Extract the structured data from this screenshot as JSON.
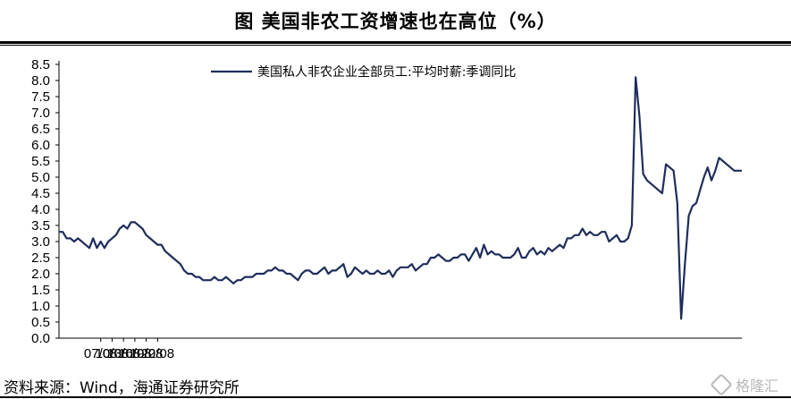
{
  "title": "图  美国非农工资增速也在高位（%）",
  "source": "资料来源：Wind，海通证券研究所",
  "watermark": "格隆汇",
  "colors": {
    "line": "#1f2d5c",
    "axis": "#000000"
  },
  "chart_data": {
    "type": "line",
    "title": "图  美国非农工资增速也在高位（%）",
    "xlabel": "",
    "ylabel": "",
    "ylim": [
      0.0,
      8.5
    ],
    "yticks": [
      "0.0",
      "0.5",
      "1.0",
      "1.5",
      "2.0",
      "2.5",
      "3.0",
      "3.5",
      "4.0",
      "4.5",
      "5.0",
      "5.5",
      "6.0",
      "6.5",
      "7.0",
      "7.5",
      "8.0",
      "8.5"
    ],
    "xticks": [
      "07/08",
      "10/08",
      "13/08",
      "16/08",
      "19/08",
      "22/08"
    ],
    "xrange": [
      "2007-08",
      "2022-08"
    ],
    "legend_position": "top",
    "grid": false,
    "series": [
      {
        "name": "美国私人非农企业全部员工:平均时薪:季调同比",
        "color": "#1f2d5c",
        "points": [
          [
            "2007-08",
            3.3
          ],
          [
            "2007-09",
            3.3
          ],
          [
            "2007-10",
            3.1
          ],
          [
            "2007-11",
            3.1
          ],
          [
            "2007-12",
            3.0
          ],
          [
            "2008-01",
            3.1
          ],
          [
            "2008-02",
            3.0
          ],
          [
            "2008-03",
            2.9
          ],
          [
            "2008-04",
            2.8
          ],
          [
            "2008-05",
            3.1
          ],
          [
            "2008-06",
            2.8
          ],
          [
            "2008-07",
            3.0
          ],
          [
            "2008-08",
            2.8
          ],
          [
            "2008-09",
            3.0
          ],
          [
            "2008-10",
            3.1
          ],
          [
            "2008-11",
            3.2
          ],
          [
            "2008-12",
            3.4
          ],
          [
            "2009-01",
            3.5
          ],
          [
            "2009-02",
            3.4
          ],
          [
            "2009-03",
            3.6
          ],
          [
            "2009-04",
            3.6
          ],
          [
            "2009-05",
            3.5
          ],
          [
            "2009-06",
            3.4
          ],
          [
            "2009-07",
            3.2
          ],
          [
            "2009-08",
            3.1
          ],
          [
            "2009-09",
            3.0
          ],
          [
            "2009-10",
            2.9
          ],
          [
            "2009-11",
            2.9
          ],
          [
            "2009-12",
            2.7
          ],
          [
            "2010-01",
            2.6
          ],
          [
            "2010-02",
            2.5
          ],
          [
            "2010-03",
            2.4
          ],
          [
            "2010-04",
            2.3
          ],
          [
            "2010-05",
            2.1
          ],
          [
            "2010-06",
            2.0
          ],
          [
            "2010-07",
            2.0
          ],
          [
            "2010-08",
            1.9
          ],
          [
            "2010-09",
            1.9
          ],
          [
            "2010-10",
            1.8
          ],
          [
            "2010-11",
            1.8
          ],
          [
            "2010-12",
            1.8
          ],
          [
            "2011-01",
            1.9
          ],
          [
            "2011-02",
            1.8
          ],
          [
            "2011-03",
            1.8
          ],
          [
            "2011-04",
            1.9
          ],
          [
            "2011-05",
            1.8
          ],
          [
            "2011-06",
            1.7
          ],
          [
            "2011-07",
            1.8
          ],
          [
            "2011-08",
            1.8
          ],
          [
            "2011-09",
            1.9
          ],
          [
            "2011-10",
            1.9
          ],
          [
            "2011-11",
            1.9
          ],
          [
            "2011-12",
            2.0
          ],
          [
            "2012-01",
            2.0
          ],
          [
            "2012-02",
            2.0
          ],
          [
            "2012-03",
            2.1
          ],
          [
            "2012-04",
            2.1
          ],
          [
            "2012-05",
            2.2
          ],
          [
            "2012-06",
            2.1
          ],
          [
            "2012-07",
            2.1
          ],
          [
            "2012-08",
            2.0
          ],
          [
            "2012-09",
            2.0
          ],
          [
            "2012-10",
            1.9
          ],
          [
            "2012-11",
            1.8
          ],
          [
            "2012-12",
            2.0
          ],
          [
            "2013-01",
            2.1
          ],
          [
            "2013-02",
            2.1
          ],
          [
            "2013-03",
            2.0
          ],
          [
            "2013-04",
            2.0
          ],
          [
            "2013-05",
            2.1
          ],
          [
            "2013-06",
            2.2
          ],
          [
            "2013-07",
            2.0
          ],
          [
            "2013-08",
            2.1
          ],
          [
            "2013-09",
            2.1
          ],
          [
            "2013-10",
            2.2
          ],
          [
            "2013-11",
            2.3
          ],
          [
            "2013-12",
            1.9
          ],
          [
            "2014-01",
            2.0
          ],
          [
            "2014-02",
            2.2
          ],
          [
            "2014-03",
            2.1
          ],
          [
            "2014-04",
            2.0
          ],
          [
            "2014-05",
            2.1
          ],
          [
            "2014-06",
            2.0
          ],
          [
            "2014-07",
            2.0
          ],
          [
            "2014-08",
            2.1
          ],
          [
            "2014-09",
            2.0
          ],
          [
            "2014-10",
            2.0
          ],
          [
            "2014-11",
            2.1
          ],
          [
            "2014-12",
            1.9
          ],
          [
            "2015-01",
            2.1
          ],
          [
            "2015-02",
            2.2
          ],
          [
            "2015-03",
            2.2
          ],
          [
            "2015-04",
            2.2
          ],
          [
            "2015-05",
            2.3
          ],
          [
            "2015-06",
            2.1
          ],
          [
            "2015-07",
            2.2
          ],
          [
            "2015-08",
            2.3
          ],
          [
            "2015-09",
            2.3
          ],
          [
            "2015-10",
            2.5
          ],
          [
            "2015-11",
            2.5
          ],
          [
            "2015-12",
            2.6
          ],
          [
            "2016-01",
            2.5
          ],
          [
            "2016-02",
            2.4
          ],
          [
            "2016-03",
            2.4
          ],
          [
            "2016-04",
            2.5
          ],
          [
            "2016-05",
            2.5
          ],
          [
            "2016-06",
            2.6
          ],
          [
            "2016-07",
            2.6
          ],
          [
            "2016-08",
            2.4
          ],
          [
            "2016-09",
            2.6
          ],
          [
            "2016-10",
            2.8
          ],
          [
            "2016-11",
            2.5
          ],
          [
            "2016-12",
            2.9
          ],
          [
            "2017-01",
            2.6
          ],
          [
            "2017-02",
            2.7
          ],
          [
            "2017-03",
            2.6
          ],
          [
            "2017-04",
            2.6
          ],
          [
            "2017-05",
            2.5
          ],
          [
            "2017-06",
            2.5
          ],
          [
            "2017-07",
            2.5
          ],
          [
            "2017-08",
            2.6
          ],
          [
            "2017-09",
            2.8
          ],
          [
            "2017-10",
            2.5
          ],
          [
            "2017-11",
            2.5
          ],
          [
            "2017-12",
            2.7
          ],
          [
            "2018-01",
            2.8
          ],
          [
            "2018-02",
            2.6
          ],
          [
            "2018-03",
            2.7
          ],
          [
            "2018-04",
            2.6
          ],
          [
            "2018-05",
            2.8
          ],
          [
            "2018-06",
            2.7
          ],
          [
            "2018-07",
            2.8
          ],
          [
            "2018-08",
            2.9
          ],
          [
            "2018-09",
            2.8
          ],
          [
            "2018-10",
            3.1
          ],
          [
            "2018-11",
            3.1
          ],
          [
            "2018-12",
            3.2
          ],
          [
            "2019-01",
            3.2
          ],
          [
            "2019-02",
            3.4
          ],
          [
            "2019-03",
            3.2
          ],
          [
            "2019-04",
            3.3
          ],
          [
            "2019-05",
            3.2
          ],
          [
            "2019-06",
            3.2
          ],
          [
            "2019-07",
            3.3
          ],
          [
            "2019-08",
            3.3
          ],
          [
            "2019-09",
            3.0
          ],
          [
            "2019-10",
            3.1
          ],
          [
            "2019-11",
            3.2
          ],
          [
            "2019-12",
            3.0
          ],
          [
            "2020-01",
            3.0
          ],
          [
            "2020-02",
            3.1
          ],
          [
            "2020-03",
            3.5
          ],
          [
            "2020-04",
            8.1
          ],
          [
            "2020-05",
            6.9
          ],
          [
            "2020-06",
            5.1
          ],
          [
            "2020-07",
            4.9
          ],
          [
            "2020-08",
            4.8
          ],
          [
            "2020-09",
            4.7
          ],
          [
            "2020-10",
            4.6
          ],
          [
            "2020-11",
            4.5
          ],
          [
            "2020-12",
            5.4
          ],
          [
            "2021-01",
            5.3
          ],
          [
            "2021-02",
            5.2
          ],
          [
            "2021-03",
            4.2
          ],
          [
            "2021-04",
            0.6
          ],
          [
            "2021-05",
            2.3
          ],
          [
            "2021-06",
            3.8
          ],
          [
            "2021-07",
            4.1
          ],
          [
            "2021-08",
            4.2
          ],
          [
            "2021-09",
            4.6
          ],
          [
            "2021-10",
            5.0
          ],
          [
            "2021-11",
            5.3
          ],
          [
            "2021-12",
            4.9
          ],
          [
            "2022-01",
            5.2
          ],
          [
            "2022-02",
            5.6
          ],
          [
            "2022-03",
            5.5
          ],
          [
            "2022-04",
            5.4
          ],
          [
            "2022-05",
            5.3
          ],
          [
            "2022-06",
            5.2
          ],
          [
            "2022-07",
            5.2
          ],
          [
            "2022-08",
            5.2
          ]
        ]
      }
    ]
  }
}
